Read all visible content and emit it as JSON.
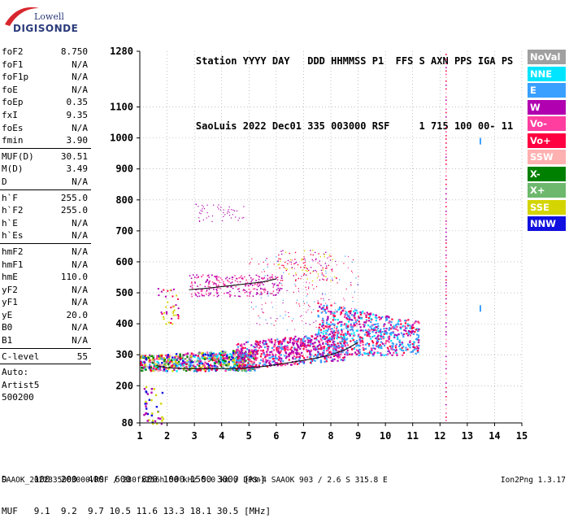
{
  "logo": {
    "line1": "Lowell",
    "line2": "DIGISONDE"
  },
  "header": {
    "labels": [
      "Station",
      "YYYY",
      "DAY",
      "DDD",
      "HHMMSS",
      "P1",
      "FFS",
      "S",
      "AXN",
      "PPS",
      "IGA",
      "PS"
    ],
    "values": [
      "SaoLuis",
      "2022",
      "Dec01",
      "335",
      "003000",
      "RSF",
      "",
      "1",
      "715",
      "100",
      "00-",
      "11"
    ]
  },
  "params": {
    "group1": [
      {
        "name": "foF2",
        "value": "8.750"
      },
      {
        "name": "foF1",
        "value": "N/A"
      },
      {
        "name": "foF1p",
        "value": "N/A"
      },
      {
        "name": "foE",
        "value": "N/A"
      },
      {
        "name": "foEp",
        "value": "0.35"
      },
      {
        "name": "fxI",
        "value": "9.35"
      },
      {
        "name": "foEs",
        "value": "N/A"
      },
      {
        "name": "fmin",
        "value": "3.90"
      }
    ],
    "group2": [
      {
        "name": "MUF(D)",
        "value": "30.51"
      },
      {
        "name": "M(D)",
        "value": "3.49"
      },
      {
        "name": "D",
        "value": "N/A"
      }
    ],
    "group3": [
      {
        "name": "h`F",
        "value": "255.0"
      },
      {
        "name": "h`F2",
        "value": "255.0"
      },
      {
        "name": "h`E",
        "value": "N/A"
      },
      {
        "name": "h`Es",
        "value": "N/A"
      }
    ],
    "group4": [
      {
        "name": "hmF2",
        "value": "N/A"
      },
      {
        "name": "hmF1",
        "value": "N/A"
      },
      {
        "name": "hmE",
        "value": "110.0"
      },
      {
        "name": "yF2",
        "value": "N/A"
      },
      {
        "name": "yF1",
        "value": "N/A"
      },
      {
        "name": "yE",
        "value": "20.0"
      },
      {
        "name": "B0",
        "value": "N/A"
      },
      {
        "name": "B1",
        "value": "N/A"
      }
    ],
    "clevel": {
      "name": "C-level",
      "value": "55"
    },
    "auto": [
      "Auto:",
      "Artist5",
      "500200"
    ]
  },
  "legend": [
    {
      "label": "NoVal",
      "color": "#a0a0a0"
    },
    {
      "label": "NNE",
      "color": "#00e5ff"
    },
    {
      "label": "E",
      "color": "#3aa0ff"
    },
    {
      "label": "W",
      "color": "#b000b0"
    },
    {
      "label": "Vo-",
      "color": "#ff3ea0"
    },
    {
      "label": "Vo+",
      "color": "#ff0040"
    },
    {
      "label": "SSW",
      "color": "#ffb0b0"
    },
    {
      "label": "X-",
      "color": "#008000"
    },
    {
      "label": "X+",
      "color": "#6db86d"
    },
    {
      "label": "SSE",
      "color": "#d4d400"
    },
    {
      "label": "NNW",
      "color": "#1010e0"
    }
  ],
  "footer": {
    "line1": "D     100  200  400  600  800 1000 1500 3000 [km]",
    "line2": "MUF   9.1  9.2  9.7 10.5 11.6 13.3 18.1 30.5 [MHz]",
    "line3": "SAAOK_2022335003000.RSF / 280fx256h 50 kHz 5.0 km / DPS-4 SAAOK 903 / 2.6 S 315.8 E",
    "version": "Ion2Png 1.3.17"
  },
  "chart_data": {
    "type": "scatter",
    "xlabel": "",
    "ylabel": "",
    "xlim": [
      1,
      15
    ],
    "ylim": [
      80,
      1280
    ],
    "x_ticks": [
      1,
      2,
      3,
      4,
      5,
      6,
      7,
      8,
      9,
      10,
      11,
      12,
      13,
      14,
      15
    ],
    "y_ticks": [
      80,
      200,
      300,
      400,
      500,
      600,
      700,
      800,
      900,
      1000,
      1100,
      1280
    ],
    "grid": true,
    "legend_position": "right",
    "series": [
      {
        "trace": "o-trace",
        "x": [
          1.6,
          2.0,
          2.5,
          3.0,
          3.5,
          4.0,
          4.5,
          5.0,
          5.5,
          6.0,
          6.5,
          7.0,
          7.5,
          8.0,
          8.5,
          9.0
        ],
        "y": [
          265,
          258,
          256,
          255,
          255,
          255,
          256,
          258,
          262,
          268,
          275,
          282,
          290,
          300,
          315,
          340
        ]
      },
      {
        "trace": "second-hop",
        "x": [
          2.8,
          3.5,
          4.0,
          4.5,
          5.0,
          5.5,
          6.0
        ],
        "y": [
          510,
          515,
          520,
          525,
          530,
          535,
          545
        ]
      }
    ]
  }
}
